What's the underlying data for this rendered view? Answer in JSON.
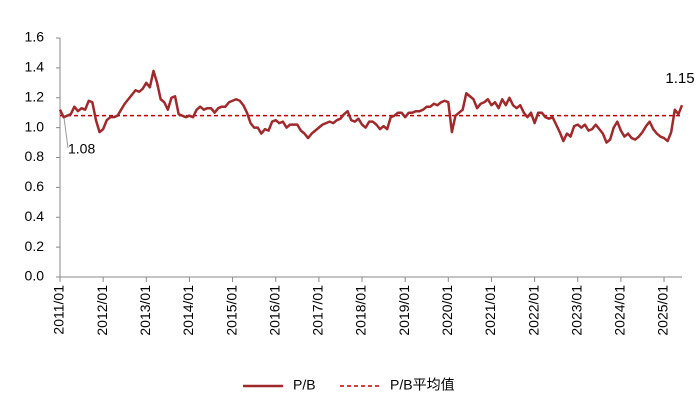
{
  "chart_data": {
    "type": "line",
    "categories": [
      "2011/01",
      null,
      null,
      null,
      null,
      null,
      null,
      null,
      null,
      null,
      null,
      null,
      "2012/01",
      null,
      null,
      null,
      null,
      null,
      null,
      null,
      null,
      null,
      null,
      null,
      "2013/01",
      null,
      null,
      null,
      null,
      null,
      null,
      null,
      null,
      null,
      null,
      null,
      "2014/01",
      null,
      null,
      null,
      null,
      null,
      null,
      null,
      null,
      null,
      null,
      null,
      "2015/01",
      null,
      null,
      null,
      null,
      null,
      null,
      null,
      null,
      null,
      null,
      null,
      "2016/01",
      null,
      null,
      null,
      null,
      null,
      null,
      null,
      null,
      null,
      null,
      null,
      "2017/01",
      null,
      null,
      null,
      null,
      null,
      null,
      null,
      null,
      null,
      null,
      null,
      "2018/01",
      null,
      null,
      null,
      null,
      null,
      null,
      null,
      null,
      null,
      null,
      null,
      "2019/01",
      null,
      null,
      null,
      null,
      null,
      null,
      null,
      null,
      null,
      null,
      null,
      "2020/01",
      null,
      null,
      null,
      null,
      null,
      null,
      null,
      null,
      null,
      null,
      null,
      "2021/01",
      null,
      null,
      null,
      null,
      null,
      null,
      null,
      null,
      null,
      null,
      null,
      "2022/01",
      null,
      null,
      null,
      null,
      null,
      null,
      null,
      null,
      null,
      null,
      null,
      "2023/01",
      null,
      null,
      null,
      null,
      null,
      null,
      null,
      null,
      null,
      null,
      null,
      "2024/01",
      null,
      null,
      null,
      null,
      null,
      null,
      null,
      null,
      null,
      null,
      null,
      "2025/01",
      null,
      null,
      null,
      null,
      null
    ],
    "series": [
      {
        "name": "P/B",
        "color": "#a0292c",
        "values": [
          1.12,
          1.07,
          1.08,
          1.09,
          1.14,
          1.11,
          1.13,
          1.12,
          1.18,
          1.17,
          1.05,
          0.97,
          0.99,
          1.05,
          1.07,
          1.07,
          1.08,
          1.12,
          1.16,
          1.19,
          1.22,
          1.25,
          1.24,
          1.26,
          1.3,
          1.27,
          1.38,
          1.3,
          1.19,
          1.17,
          1.12,
          1.2,
          1.21,
          1.09,
          1.08,
          1.07,
          1.08,
          1.07,
          1.12,
          1.14,
          1.12,
          1.13,
          1.13,
          1.1,
          1.13,
          1.14,
          1.14,
          1.17,
          1.18,
          1.19,
          1.18,
          1.15,
          1.1,
          1.03,
          1.0,
          1.0,
          0.96,
          0.99,
          0.98,
          1.04,
          1.05,
          1.03,
          1.04,
          1.0,
          1.02,
          1.02,
          1.02,
          0.98,
          0.96,
          0.93,
          0.96,
          0.98,
          1.0,
          1.02,
          1.03,
          1.04,
          1.03,
          1.05,
          1.06,
          1.09,
          1.11,
          1.05,
          1.04,
          1.06,
          1.02,
          1.0,
          1.04,
          1.04,
          1.02,
          0.99,
          1.01,
          0.99,
          1.07,
          1.08,
          1.1,
          1.1,
          1.07,
          1.1,
          1.1,
          1.11,
          1.11,
          1.12,
          1.14,
          1.14,
          1.16,
          1.15,
          1.17,
          1.18,
          1.17,
          0.97,
          1.08,
          1.1,
          1.12,
          1.23,
          1.21,
          1.19,
          1.13,
          1.16,
          1.17,
          1.19,
          1.15,
          1.17,
          1.13,
          1.19,
          1.15,
          1.2,
          1.15,
          1.13,
          1.15,
          1.1,
          1.07,
          1.1,
          1.03,
          1.1,
          1.1,
          1.07,
          1.06,
          1.07,
          1.02,
          0.97,
          0.91,
          0.96,
          0.94,
          1.01,
          1.02,
          1.0,
          1.02,
          0.98,
          0.99,
          1.02,
          0.99,
          0.96,
          0.9,
          0.92,
          1.0,
          1.04,
          0.98,
          0.94,
          0.96,
          0.93,
          0.92,
          0.94,
          0.97,
          1.01,
          1.04,
          0.99,
          0.96,
          0.94,
          0.93,
          0.91,
          0.97,
          1.12,
          1.09,
          1.15
        ]
      }
    ],
    "reference": {
      "name": "P/B平均值",
      "value": 1.08,
      "color": "#c00000",
      "dashed": true
    },
    "ylim": [
      0,
      1.6
    ],
    "yticks": [
      {
        "value": 0,
        "label": "0.0"
      },
      0.2,
      0.4,
      0.6,
      0.8,
      {
        "value": 1,
        "label": "1.0"
      },
      1.2,
      1.4,
      1.6
    ],
    "grid": false,
    "legend": "bottom"
  }
}
